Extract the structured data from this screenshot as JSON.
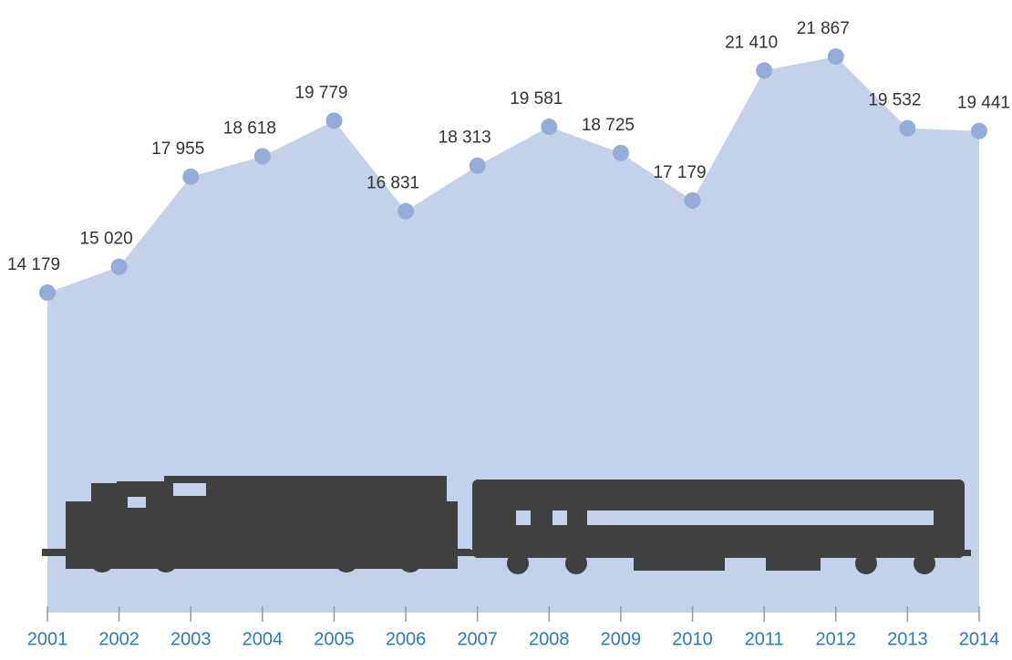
{
  "chart_data": {
    "type": "area",
    "categories": [
      "2001",
      "2002",
      "2003",
      "2004",
      "2005",
      "2006",
      "2007",
      "2008",
      "2009",
      "2010",
      "2011",
      "2012",
      "2013",
      "2014"
    ],
    "values": [
      14179,
      15020,
      17955,
      18618,
      19779,
      16831,
      18313,
      19581,
      18725,
      17179,
      21410,
      21867,
      19532,
      19441
    ],
    "value_labels": [
      "14 179",
      "15 020",
      "17 955",
      "18 618",
      "19 779",
      "16 831",
      "18 313",
      "19 581",
      "18 725",
      "17 179",
      "21 410",
      "21 867",
      "19 532",
      "19 441"
    ],
    "color": "#c3d1ea",
    "marker_color": "#94acd8"
  }
}
